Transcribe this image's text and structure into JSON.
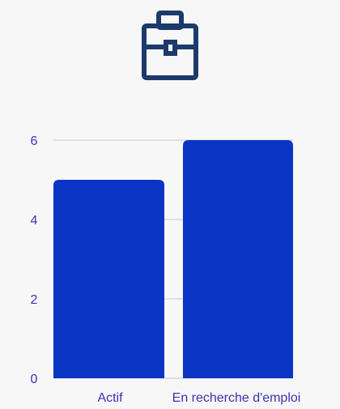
{
  "header": {
    "icon": "briefcase-icon"
  },
  "colors": {
    "icon": "#1c3a6b",
    "bar": "#0a35c4",
    "grid": "#c5c5e6",
    "text": "#3b33b0"
  },
  "chart_data": {
    "type": "bar",
    "categories": [
      "Actif",
      "En recherche d'emploi"
    ],
    "values": [
      5,
      6
    ],
    "yticks": [
      "0",
      "2",
      "4",
      "6"
    ],
    "ylim": [
      0,
      6
    ],
    "grid": true
  }
}
